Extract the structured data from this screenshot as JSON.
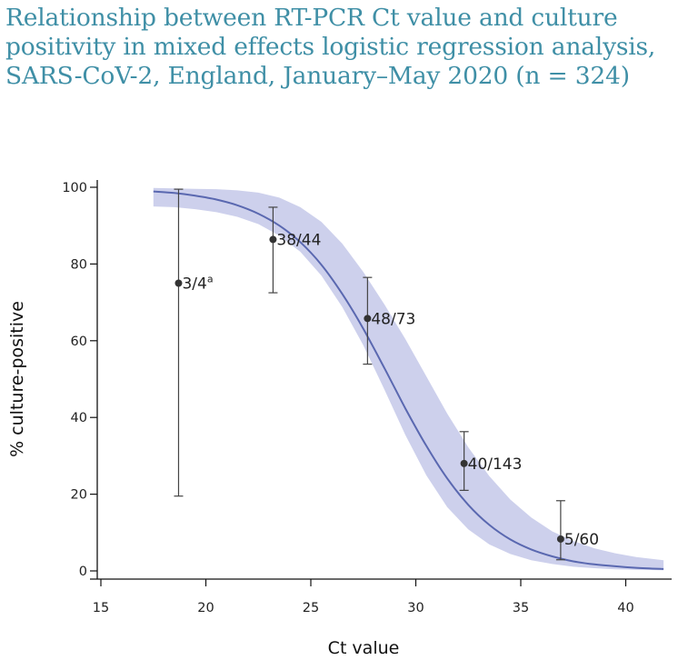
{
  "title_lines": [
    "Relationship between RT-PCR Ct value and culture",
    "positivity in mixed effects logistic regression analysis,",
    "SARS-CoV-2, England, January–May 2020 (n = 324)"
  ],
  "colors": {
    "title": "#3f8fa6",
    "curve": "#5a68b0",
    "band": "#cdd0ec",
    "points": "#333333"
  },
  "chart_data": {
    "type": "scatter",
    "title": "Relationship between RT-PCR Ct value and culture positivity in mixed effects logistic regression analysis, SARS-CoV-2, England, January–May 2020 (n = 324)",
    "xlabel": "Ct value",
    "ylabel": "% culture-positive",
    "xlim": [
      15,
      42
    ],
    "ylim": [
      0,
      100
    ],
    "xticks": [
      15,
      20,
      25,
      30,
      35,
      40
    ],
    "yticks": [
      0,
      20,
      40,
      60,
      80,
      100
    ],
    "grid": false,
    "points": [
      {
        "x": 18.7,
        "y": 75,
        "low": 19.5,
        "high": 99.5,
        "label": "3/4",
        "sup": "a"
      },
      {
        "x": 23.2,
        "y": 86.4,
        "low": 72.5,
        "high": 94.8,
        "label": "38/44",
        "sup": ""
      },
      {
        "x": 27.7,
        "y": 65.8,
        "low": 53.9,
        "high": 76.5,
        "label": "48/73",
        "sup": ""
      },
      {
        "x": 32.3,
        "y": 28.0,
        "low": 21.0,
        "high": 36.3,
        "label": "40/143",
        "sup": ""
      },
      {
        "x": 36.9,
        "y": 8.3,
        "low": 2.9,
        "high": 18.3,
        "label": "5/60",
        "sup": ""
      }
    ],
    "fit_curve": {
      "x": [
        17.5,
        18.5,
        19.5,
        20.5,
        21.5,
        22.5,
        23.5,
        24.5,
        25.5,
        26.5,
        27.5,
        28.5,
        29.5,
        30.5,
        31.5,
        32.5,
        33.5,
        34.5,
        35.5,
        36.5,
        37.5,
        38.5,
        39.5,
        40.5,
        41.8
      ],
      "y": [
        98.9,
        98.5,
        97.8,
        96.8,
        95.3,
        93.1,
        90.0,
        85.7,
        79.8,
        72.2,
        63.1,
        52.9,
        42.4,
        32.6,
        24.1,
        17.2,
        12.0,
        8.2,
        5.6,
        3.8,
        2.5,
        1.7,
        1.2,
        0.8,
        0.5
      ],
      "low": [
        95.0,
        94.8,
        94.3,
        93.5,
        92.3,
        90.4,
        87.4,
        83.2,
        77.0,
        68.8,
        58.8,
        47.3,
        35.5,
        24.9,
        16.6,
        10.8,
        6.9,
        4.4,
        2.8,
        1.8,
        1.1,
        0.7,
        0.4,
        0.3,
        0.2
      ],
      "high": [
        99.8,
        99.7,
        99.6,
        99.5,
        99.2,
        98.6,
        97.3,
        94.8,
        91.0,
        85.3,
        77.9,
        69.5,
        60.5,
        50.7,
        41.0,
        32.2,
        24.7,
        18.6,
        13.9,
        10.3,
        7.8,
        5.9,
        4.6,
        3.6,
        2.8
      ]
    }
  }
}
